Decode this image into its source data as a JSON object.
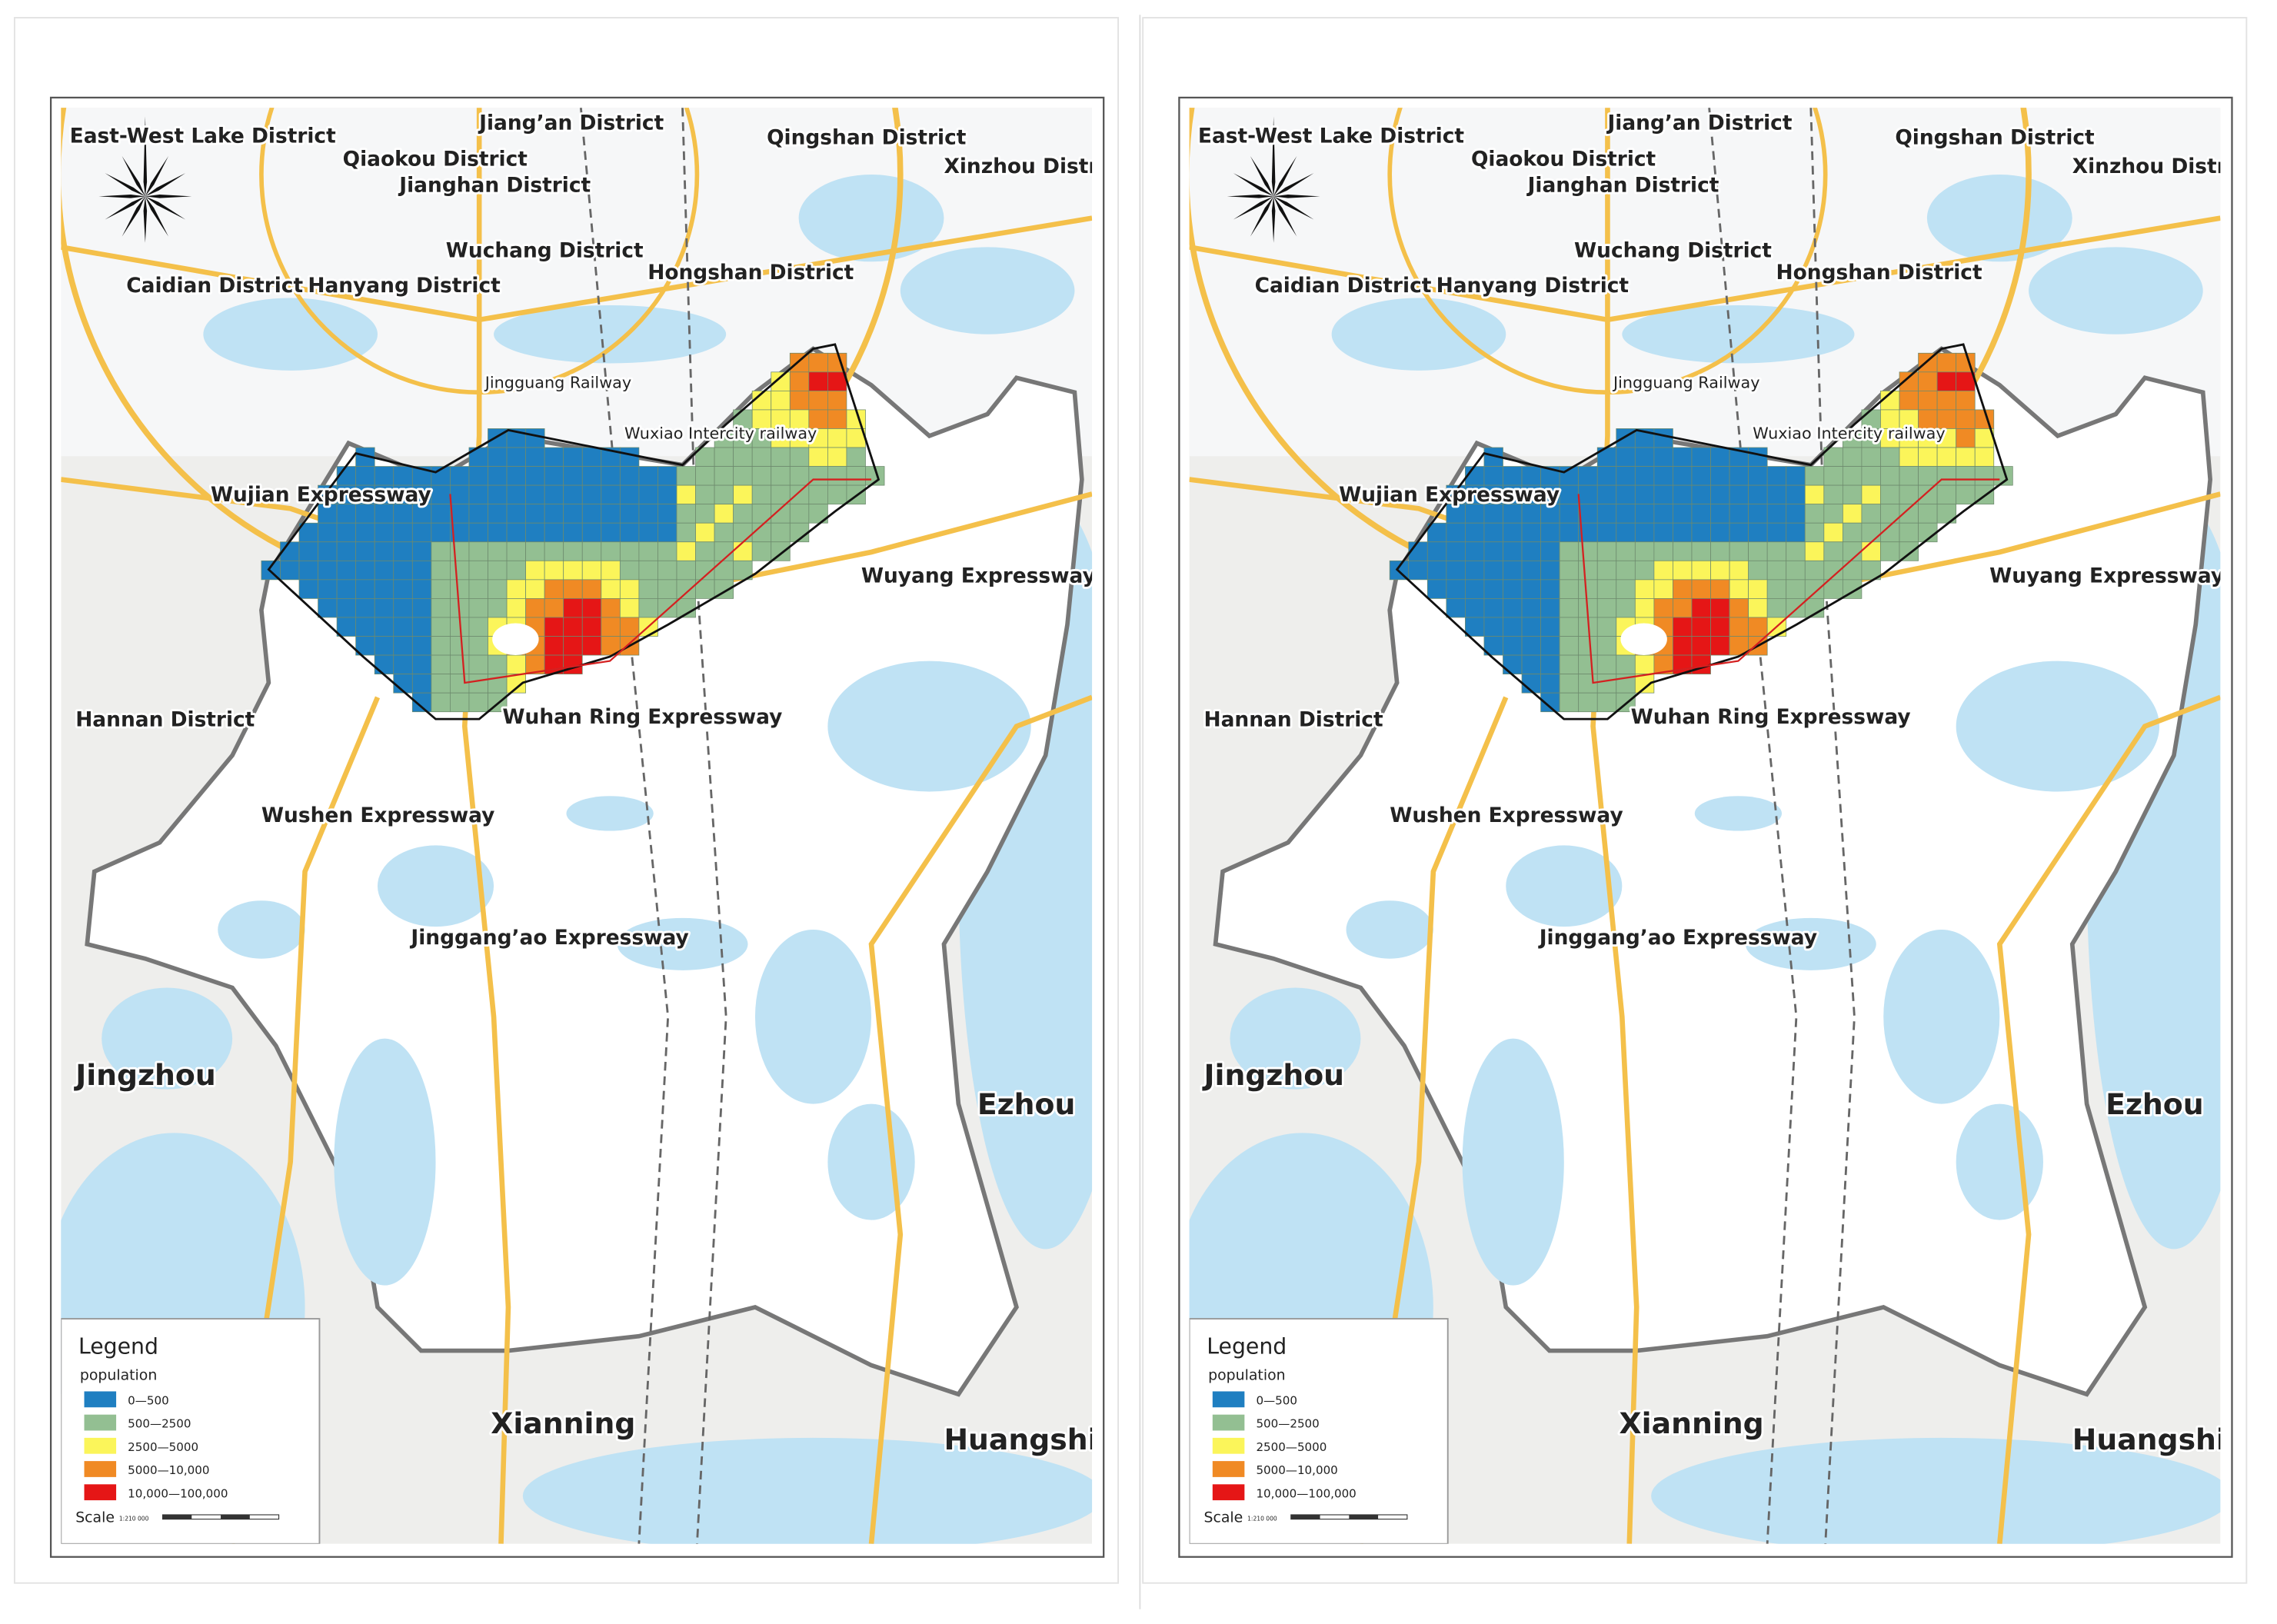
{
  "panels": [
    {
      "labels": [
        "East-West Lake District",
        "Jiang’an District",
        "Qiaokou District",
        "Qingshan District",
        "Xinzhou District",
        "Jianghan District",
        "Wuchang District",
        "Caidian District",
        "Hanyang District",
        "Hongshan District",
        "Jingguang Railway",
        "Wuxiao Intercity railway",
        "Wujian Expressway",
        "Wuyang Expressway",
        "Hannan District",
        "Wuhan Ring Expressway",
        "Wushen Expressway",
        "Jinggang’ao Expressway",
        "Jingzhou",
        "Ezhou",
        "Xianning",
        "Huangshi"
      ],
      "legend": {
        "title": "Legend",
        "subtitle": "population",
        "items": [
          {
            "label": "0—500",
            "color": "#1f7fc1"
          },
          {
            "label": "500—2500",
            "color": "#93bf92"
          },
          {
            "label": "2500—5000",
            "color": "#fbf55a"
          },
          {
            "label": "5000—10,000",
            "color": "#f08a24"
          },
          {
            "label": "10,000—100,000",
            "color": "#e51616"
          }
        ],
        "scale_title": "Scale",
        "scale_ratio": "1:210 000"
      }
    },
    {
      "labels": [
        "East-West Lake District",
        "Jiang’an District",
        "Qiaokou District",
        "Qingshan District",
        "Xinzhou District",
        "Jianghan District",
        "Wuchang District",
        "Caidian District",
        "Hanyang District",
        "Hongshan District",
        "Jingguang Railway",
        "Wuxiao Intercity railway",
        "Wujian Expressway",
        "Wuyang Expressway",
        "Hannan District",
        "Wuhan Ring Expressway",
        "Wushen Expressway",
        "Jinggang’ao Expressway",
        "Jingzhou",
        "Ezhou",
        "Xianning",
        "Huangshi"
      ],
      "legend": {
        "title": "Legend",
        "subtitle": "population",
        "items": [
          {
            "label": "0—500",
            "color": "#1f7fc1"
          },
          {
            "label": "500—2500",
            "color": "#93bf92"
          },
          {
            "label": "2500—5000",
            "color": "#fbf55a"
          },
          {
            "label": "5000—10,000",
            "color": "#f08a24"
          },
          {
            "label": "10,000—100,000",
            "color": "#e51616"
          }
        ],
        "scale_title": "Scale",
        "scale_ratio": "1:210 000"
      }
    }
  ]
}
